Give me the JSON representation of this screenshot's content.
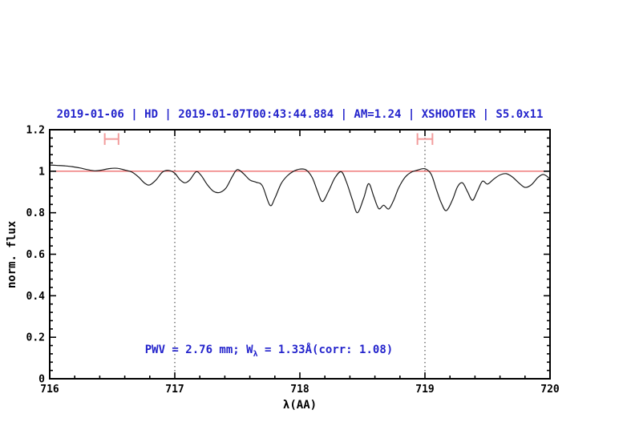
{
  "chart_data": {
    "type": "line",
    "title": "2019-01-06 | HD | 2019-01-07T00:43:44.884 | AM=1.24 | XSHOOTER | S5.0x11",
    "xlabel": "λ(AA)",
    "ylabel": "norm. flux",
    "xlim": [
      716,
      720
    ],
    "ylim": [
      0,
      1.2
    ],
    "xticks": {
      "values": [
        716,
        717,
        718,
        719,
        720
      ],
      "labels": [
        "716",
        "717",
        "718",
        "719",
        "720"
      ],
      "minor_step": 0.2
    },
    "yticks": {
      "values": [
        0,
        0.2,
        0.4,
        0.6,
        0.8,
        1,
        1.2
      ],
      "labels": [
        "0",
        "0.2",
        "0.4",
        "0.6",
        "0.8",
        "1",
        "1.2"
      ],
      "minor_step": 0.04
    },
    "grid": false,
    "legend": null,
    "series": [
      {
        "name": "normalized-spectrum",
        "color": "#1c1c1c",
        "x": [
          716.0,
          716.06,
          716.12,
          716.18,
          716.24,
          716.3,
          716.36,
          716.42,
          716.48,
          716.54,
          716.6,
          716.66,
          716.71,
          716.76,
          716.8,
          716.85,
          716.9,
          716.95,
          717.0,
          717.04,
          717.08,
          717.12,
          717.17,
          717.21,
          717.26,
          717.31,
          717.36,
          717.41,
          717.46,
          717.5,
          717.55,
          717.6,
          717.65,
          717.7,
          717.76,
          717.8,
          717.85,
          717.9,
          717.95,
          718.0,
          718.05,
          718.1,
          718.14,
          718.18,
          718.23,
          718.28,
          718.33,
          718.37,
          718.42,
          718.46,
          718.51,
          718.55,
          718.59,
          718.63,
          718.67,
          718.71,
          718.75,
          718.79,
          718.84,
          718.89,
          718.94,
          719.0,
          719.05,
          719.09,
          719.13,
          719.17,
          719.22,
          719.26,
          719.3,
          719.34,
          719.38,
          719.42,
          719.46,
          719.5,
          719.55,
          719.6,
          719.65,
          719.7,
          719.75,
          719.8,
          719.85,
          719.9,
          719.94,
          719.97,
          720.0
        ],
        "y": [
          1.03,
          1.028,
          1.026,
          1.022,
          1.016,
          1.008,
          1.002,
          1.006,
          1.013,
          1.014,
          1.006,
          0.995,
          0.972,
          0.942,
          0.934,
          0.958,
          0.995,
          1.004,
          0.99,
          0.96,
          0.944,
          0.958,
          0.997,
          0.98,
          0.935,
          0.903,
          0.898,
          0.92,
          0.975,
          1.008,
          0.988,
          0.958,
          0.947,
          0.93,
          0.836,
          0.87,
          0.94,
          0.978,
          1.0,
          1.01,
          1.006,
          0.968,
          0.905,
          0.854,
          0.905,
          0.968,
          0.998,
          0.952,
          0.862,
          0.8,
          0.87,
          0.94,
          0.88,
          0.82,
          0.836,
          0.818,
          0.86,
          0.92,
          0.97,
          0.995,
          1.005,
          1.012,
          0.985,
          0.915,
          0.848,
          0.81,
          0.862,
          0.925,
          0.944,
          0.902,
          0.86,
          0.905,
          0.952,
          0.938,
          0.962,
          0.982,
          0.988,
          0.972,
          0.944,
          0.922,
          0.934,
          0.968,
          0.984,
          0.978,
          0.962
        ]
      }
    ],
    "reference_line": {
      "y": 1.0,
      "color": "#ee6c6c"
    },
    "vlines": [
      {
        "x": 717,
        "style": "dotted",
        "color": "#444444"
      },
      {
        "x": 719,
        "style": "dotted",
        "color": "#444444"
      }
    ],
    "markers": [
      {
        "type": "horizontal-error-bar",
        "x_min": 716.44,
        "x_max": 716.55,
        "y": 1.155,
        "cap_half_height": 0.028,
        "color": "#f29c9c"
      },
      {
        "type": "horizontal-error-bar",
        "x_min": 718.94,
        "x_max": 719.06,
        "y": 1.155,
        "cap_half_height": 0.028,
        "color": "#f29c9c"
      }
    ],
    "annotation": {
      "prefix": "PWV = 2.76 mm; W",
      "subscript": "λ",
      "suffix": " = 1.33Å(corr: 1.08)",
      "full_text": "PWV = 2.76 mm; Wλ = 1.33Å(corr: 1.08)"
    }
  },
  "colors": {
    "title_text": "#2424cc",
    "annotation_text": "#2424cc",
    "axis": "#000000",
    "background": "#ffffff",
    "spectrum": "#1c1c1c",
    "continuum_line": "#ee6c6c",
    "band_marker": "#f29c9c"
  }
}
